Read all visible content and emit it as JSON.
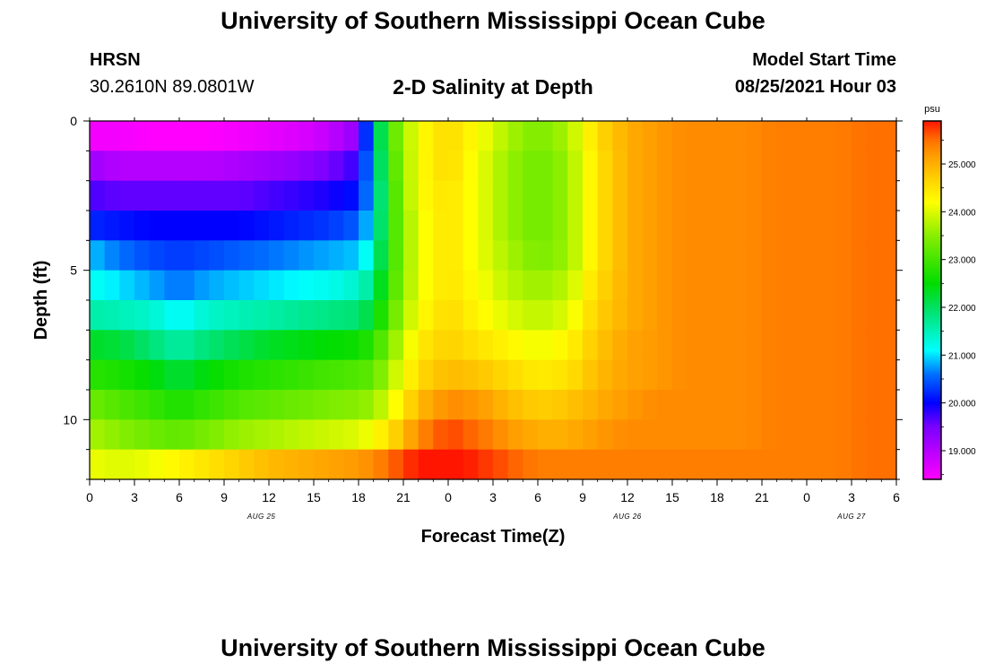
{
  "header": {
    "title": "University of Southern Mississippi Ocean Cube",
    "footer_title": "University of Southern Mississippi Ocean Cube",
    "station": "HRSN",
    "coords": "30.2610N  89.0801W",
    "subtitle": "2-D Salinity at Depth",
    "model_start_label": "Model Start Time",
    "model_start_value": "08/25/2021 Hour 03"
  },
  "chart_data": {
    "type": "heatmap",
    "title": "2-D Salinity at Depth",
    "xlabel": "Forecast Time(Z)",
    "ylabel": "Depth (ft)",
    "x_ticks": [
      0,
      3,
      6,
      9,
      12,
      15,
      18,
      21,
      24,
      27,
      30,
      33,
      36,
      39,
      42,
      45,
      48,
      51,
      54
    ],
    "x_tick_labels": [
      "0",
      "3",
      "6",
      "9",
      "12",
      "15",
      "18",
      "21",
      "0",
      "3",
      "6",
      "9",
      "12",
      "15",
      "18",
      "21",
      "0",
      "3",
      "6"
    ],
    "x_range": [
      0,
      54
    ],
    "date_labels": [
      {
        "text": "AUG 25",
        "at_hour": 11.5
      },
      {
        "text": "AUG 26",
        "at_hour": 36
      },
      {
        "text": "AUG 27",
        "at_hour": 51
      }
    ],
    "y_ticks": [
      0,
      5,
      10
    ],
    "y_range": [
      0,
      12
    ],
    "depth_levels_ft": [
      0.5,
      1.5,
      2.5,
      3.5,
      4.5,
      5.5,
      6.5,
      7.5,
      8.5,
      9.5,
      10.5,
      11.5
    ],
    "time_hours": [
      0,
      2,
      4,
      6,
      8,
      10,
      12,
      14,
      16,
      18,
      19,
      20,
      22,
      24,
      26,
      28,
      30,
      32,
      34,
      36,
      38,
      40,
      42,
      44,
      46,
      48,
      50,
      52,
      54
    ],
    "values_psu": [
      [
        18.5,
        18.5,
        18.4,
        18.4,
        18.4,
        18.5,
        18.6,
        18.7,
        18.9,
        19.3,
        21.2,
        23.0,
        24.2,
        24.6,
        24.2,
        23.7,
        23.4,
        23.7,
        24.6,
        25.0,
        25.2,
        25.3,
        25.3,
        25.3,
        25.4,
        25.4,
        25.4,
        25.5,
        25.5
      ],
      [
        19.2,
        19.0,
        19.0,
        19.0,
        19.0,
        19.1,
        19.2,
        19.3,
        19.5,
        19.8,
        21.1,
        22.9,
        24.2,
        24.6,
        24.1,
        23.6,
        23.3,
        23.6,
        24.5,
        25.0,
        25.2,
        25.3,
        25.3,
        25.3,
        25.4,
        25.4,
        25.4,
        25.5,
        25.5
      ],
      [
        19.7,
        19.6,
        19.6,
        19.6,
        19.6,
        19.6,
        19.7,
        19.8,
        19.9,
        20.1,
        21.0,
        22.8,
        24.2,
        24.5,
        24.1,
        23.6,
        23.3,
        23.6,
        24.5,
        25.0,
        25.2,
        25.3,
        25.3,
        25.3,
        25.4,
        25.4,
        25.4,
        25.5,
        25.5
      ],
      [
        20.2,
        20.1,
        20.0,
        20.0,
        20.0,
        20.0,
        20.1,
        20.2,
        20.3,
        20.5,
        21.1,
        22.8,
        24.1,
        24.5,
        24.1,
        23.6,
        23.3,
        23.6,
        24.5,
        25.0,
        25.2,
        25.3,
        25.3,
        25.3,
        25.4,
        25.4,
        25.4,
        25.5,
        25.5
      ],
      [
        20.9,
        20.6,
        20.4,
        20.3,
        20.4,
        20.5,
        20.6,
        20.7,
        20.8,
        20.9,
        21.4,
        22.8,
        24.1,
        24.5,
        24.1,
        23.7,
        23.4,
        23.6,
        24.5,
        25.0,
        25.2,
        25.3,
        25.3,
        25.3,
        25.4,
        25.4,
        25.4,
        25.5,
        25.5
      ],
      [
        21.2,
        21.0,
        20.8,
        20.6,
        20.8,
        20.9,
        21.0,
        21.1,
        21.2,
        21.4,
        21.8,
        22.9,
        24.1,
        24.5,
        24.2,
        23.8,
        23.6,
        23.8,
        24.6,
        25.0,
        25.2,
        25.3,
        25.3,
        25.3,
        25.4,
        25.4,
        25.4,
        25.5,
        25.5
      ],
      [
        21.6,
        21.5,
        21.4,
        21.1,
        21.4,
        21.5,
        21.6,
        21.7,
        21.8,
        21.9,
        22.3,
        23.1,
        24.2,
        24.6,
        24.3,
        24.0,
        23.8,
        24.0,
        24.7,
        25.0,
        25.2,
        25.3,
        25.3,
        25.3,
        25.4,
        25.4,
        25.4,
        25.5,
        25.5
      ],
      [
        22.3,
        22.2,
        21.9,
        21.6,
        21.9,
        22.1,
        22.3,
        22.4,
        22.5,
        22.6,
        22.8,
        23.4,
        24.4,
        24.7,
        24.5,
        24.3,
        24.1,
        24.3,
        24.8,
        25.1,
        25.2,
        25.3,
        25.3,
        25.3,
        25.4,
        25.4,
        25.4,
        25.5,
        25.5
      ],
      [
        22.8,
        22.7,
        22.5,
        22.2,
        22.5,
        22.7,
        22.8,
        22.9,
        23.0,
        23.1,
        23.2,
        23.7,
        24.6,
        24.9,
        24.8,
        24.6,
        24.4,
        24.5,
        24.9,
        25.1,
        25.2,
        25.3,
        25.3,
        25.3,
        25.4,
        25.4,
        25.4,
        25.5,
        25.5
      ],
      [
        23.3,
        23.1,
        22.9,
        22.7,
        22.9,
        23.1,
        23.2,
        23.3,
        23.4,
        23.5,
        23.6,
        24.0,
        24.9,
        25.3,
        25.2,
        24.9,
        24.7,
        24.8,
        25.0,
        25.2,
        25.3,
        25.3,
        25.3,
        25.3,
        25.4,
        25.4,
        25.4,
        25.5,
        25.5
      ],
      [
        23.7,
        23.5,
        23.3,
        23.2,
        23.4,
        23.6,
        23.7,
        23.8,
        23.9,
        24.0,
        24.2,
        24.5,
        25.3,
        25.7,
        25.5,
        25.2,
        25.0,
        25.0,
        25.2,
        25.3,
        25.3,
        25.3,
        25.3,
        25.3,
        25.4,
        25.4,
        25.4,
        25.5,
        25.5
      ],
      [
        24.1,
        24.0,
        24.1,
        24.3,
        24.5,
        24.7,
        24.9,
        25.0,
        25.1,
        25.2,
        25.3,
        25.5,
        25.9,
        26.0,
        25.8,
        25.6,
        25.4,
        25.4,
        25.4,
        25.4,
        25.4,
        25.4,
        25.4,
        25.4,
        25.4,
        25.4,
        25.4,
        25.5,
        25.5
      ]
    ],
    "colorbar": {
      "unit": "psu",
      "range": [
        18.4,
        25.9
      ],
      "ticks": [
        19.0,
        20.0,
        21.0,
        22.0,
        23.0,
        24.0,
        25.0
      ],
      "tick_labels": [
        "19.000",
        "20.000",
        "21.000",
        "22.000",
        "23.000",
        "24.000",
        "25.000"
      ],
      "stops": [
        {
          "v": 18.4,
          "c": "#ff00ff"
        },
        {
          "v": 19.5,
          "c": "#7a00ff"
        },
        {
          "v": 20.0,
          "c": "#0000ff"
        },
        {
          "v": 20.6,
          "c": "#0070ff"
        },
        {
          "v": 21.1,
          "c": "#00ffff"
        },
        {
          "v": 22.0,
          "c": "#00e060"
        },
        {
          "v": 22.5,
          "c": "#00dd00"
        },
        {
          "v": 23.5,
          "c": "#88ee00"
        },
        {
          "v": 24.2,
          "c": "#ffff00"
        },
        {
          "v": 24.7,
          "c": "#ffd000"
        },
        {
          "v": 25.2,
          "c": "#ff9900"
        },
        {
          "v": 25.5,
          "c": "#ff7000"
        },
        {
          "v": 25.9,
          "c": "#ff1500"
        }
      ]
    }
  }
}
